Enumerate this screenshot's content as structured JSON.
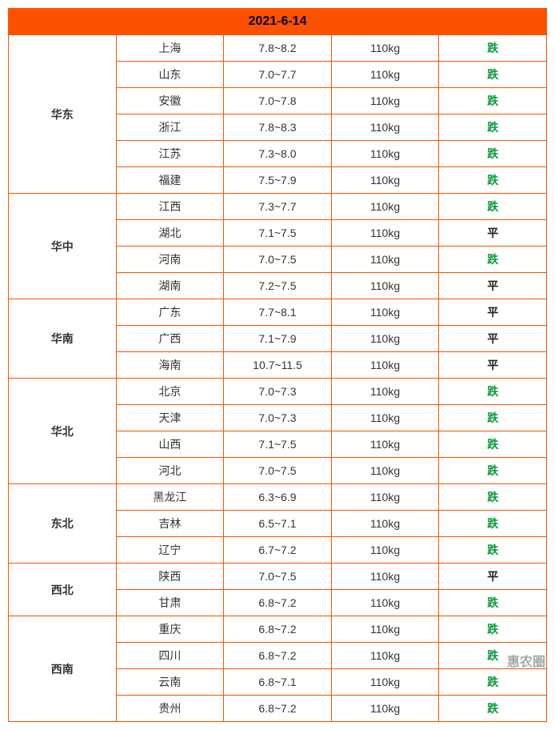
{
  "title": "2021-6-14",
  "watermark": "惠农圈",
  "colors": {
    "border": "#fc5200",
    "header_bg": "#fc5200",
    "trend_down": "#0a9a3a",
    "trend_flat": "#222222"
  },
  "weight_label": "110kg",
  "trend_labels": {
    "down": "跌",
    "flat": "平"
  },
  "regions": [
    {
      "name": "华东",
      "rows": [
        {
          "province": "上海",
          "price": "7.8~8.2",
          "trend": "down"
        },
        {
          "province": "山东",
          "price": "7.0~7.7",
          "trend": "down"
        },
        {
          "province": "安徽",
          "price": "7.0~7.8",
          "trend": "down"
        },
        {
          "province": "浙江",
          "price": "7.8~8.3",
          "trend": "down"
        },
        {
          "province": "江苏",
          "price": "7.3~8.0",
          "trend": "down"
        },
        {
          "province": "福建",
          "price": "7.5~7.9",
          "trend": "down"
        }
      ]
    },
    {
      "name": "华中",
      "rows": [
        {
          "province": "江西",
          "price": "7.3~7.7",
          "trend": "down"
        },
        {
          "province": "湖北",
          "price": "7.1~7.5",
          "trend": "flat"
        },
        {
          "province": "河南",
          "price": "7.0~7.5",
          "trend": "down"
        },
        {
          "province": "湖南",
          "price": "7.2~7.5",
          "trend": "flat"
        }
      ]
    },
    {
      "name": "华南",
      "rows": [
        {
          "province": "广东",
          "price": "7.7~8.1",
          "trend": "flat"
        },
        {
          "province": "广西",
          "price": "7.1~7.9",
          "trend": "flat"
        },
        {
          "province": "海南",
          "price": "10.7~11.5",
          "trend": "flat"
        }
      ]
    },
    {
      "name": "华北",
      "rows": [
        {
          "province": "北京",
          "price": "7.0~7.3",
          "trend": "down"
        },
        {
          "province": "天津",
          "price": "7.0~7.3",
          "trend": "down"
        },
        {
          "province": "山西",
          "price": "7.1~7.5",
          "trend": "down"
        },
        {
          "province": "河北",
          "price": "7.0~7.5",
          "trend": "down"
        }
      ]
    },
    {
      "name": "东北",
      "rows": [
        {
          "province": "黑龙江",
          "price": "6.3~6.9",
          "trend": "down"
        },
        {
          "province": "吉林",
          "price": "6.5~7.1",
          "trend": "down"
        },
        {
          "province": "辽宁",
          "price": "6.7~7.2",
          "trend": "down"
        }
      ]
    },
    {
      "name": "西北",
      "rows": [
        {
          "province": "陕西",
          "price": "7.0~7.5",
          "trend": "flat"
        },
        {
          "province": "甘肃",
          "price": "6.8~7.2",
          "trend": "down"
        }
      ]
    },
    {
      "name": "西南",
      "rows": [
        {
          "province": "重庆",
          "price": "6.8~7.2",
          "trend": "down"
        },
        {
          "province": "四川",
          "price": "6.8~7.2",
          "trend": "down"
        },
        {
          "province": "云南",
          "price": "6.8~7.1",
          "trend": "down"
        },
        {
          "province": "贵州",
          "price": "6.8~7.2",
          "trend": "down"
        }
      ]
    }
  ]
}
